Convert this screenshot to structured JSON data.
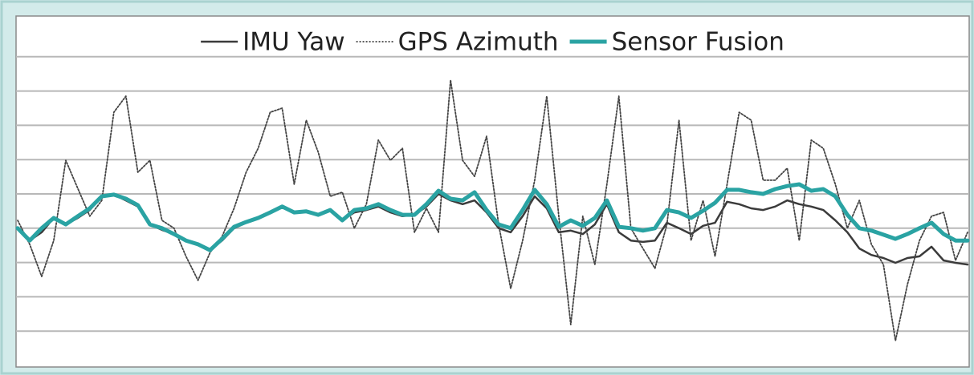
{
  "chart_data": {
    "type": "line",
    "legend": "top",
    "grid": true,
    "ylim": [
      0,
      10
    ],
    "yticks": [
      1,
      2,
      3,
      4,
      5,
      6,
      7,
      8,
      9
    ],
    "series": [
      {
        "name": "IMU Yaw",
        "color": "#3b3b3b",
        "style": "solid",
        "values": [
          4.0,
          3.64,
          3.88,
          4.3,
          4.11,
          4.3,
          4.53,
          4.93,
          4.98,
          4.81,
          4.63,
          4.11,
          3.95,
          3.83,
          3.64,
          3.53,
          3.36,
          3.64,
          4.0,
          4.16,
          4.28,
          4.46,
          4.63,
          4.46,
          4.49,
          4.39,
          4.53,
          4.23,
          4.46,
          4.53,
          4.63,
          4.46,
          4.35,
          4.39,
          4.63,
          5.0,
          4.81,
          4.7,
          4.81,
          4.46,
          4.0,
          3.88,
          4.35,
          4.93,
          4.58,
          3.88,
          3.93,
          3.83,
          4.11,
          4.7,
          3.88,
          3.64,
          3.6,
          3.64,
          4.16,
          4.0,
          3.83,
          4.07,
          4.16,
          4.77,
          4.7,
          4.58,
          4.53,
          4.63,
          4.81,
          4.7,
          4.63,
          4.53,
          4.23,
          3.88,
          3.41,
          3.22,
          3.13,
          2.99,
          3.13,
          3.18,
          3.46,
          3.06,
          2.99,
          2.94
        ]
      },
      {
        "name": "GPS Azimuth",
        "color": "#444444",
        "style": "dotted",
        "values": [
          4.23,
          3.53,
          2.59,
          3.64,
          5.98,
          5.16,
          4.35,
          4.81,
          7.38,
          7.85,
          5.63,
          5.98,
          4.23,
          4.0,
          3.18,
          2.48,
          3.29,
          3.76,
          4.58,
          5.63,
          6.33,
          7.38,
          7.5,
          5.28,
          7.15,
          6.21,
          4.93,
          5.05,
          4.0,
          4.7,
          6.57,
          5.98,
          6.33,
          3.88,
          4.58,
          3.88,
          8.32,
          5.98,
          5.51,
          6.68,
          4.11,
          2.24,
          3.64,
          5.4,
          7.85,
          4.35,
          1.19,
          4.35,
          2.94,
          5.28,
          7.85,
          4.0,
          3.41,
          2.83,
          4.11,
          7.15,
          3.64,
          4.81,
          3.18,
          5.28,
          7.38,
          7.15,
          5.4,
          5.4,
          5.75,
          3.64,
          6.57,
          6.33,
          5.28,
          4.0,
          4.81,
          3.53,
          2.94,
          0.72,
          2.36,
          3.64,
          4.35,
          4.46,
          3.06,
          3.88
        ]
      },
      {
        "name": "Sensor Fusion",
        "color": "#2aa3a3",
        "style": "thick",
        "values": [
          4.0,
          3.64,
          4.0,
          4.3,
          4.11,
          4.35,
          4.58,
          4.93,
          4.98,
          4.86,
          4.67,
          4.11,
          4.0,
          3.83,
          3.64,
          3.53,
          3.36,
          3.69,
          4.04,
          4.18,
          4.3,
          4.46,
          4.63,
          4.46,
          4.49,
          4.39,
          4.53,
          4.23,
          4.53,
          4.58,
          4.7,
          4.53,
          4.39,
          4.39,
          4.7,
          5.09,
          4.86,
          4.81,
          5.05,
          4.53,
          4.11,
          4.0,
          4.53,
          5.12,
          4.7,
          4.04,
          4.23,
          4.07,
          4.3,
          4.81,
          4.04,
          4.0,
          3.93,
          4.0,
          4.53,
          4.46,
          4.3,
          4.51,
          4.74,
          5.12,
          5.12,
          5.05,
          5.0,
          5.14,
          5.23,
          5.28,
          5.09,
          5.14,
          4.93,
          4.39,
          4.0,
          3.93,
          3.81,
          3.69,
          3.83,
          4.0,
          4.16,
          3.83,
          3.64,
          3.64
        ]
      }
    ]
  }
}
